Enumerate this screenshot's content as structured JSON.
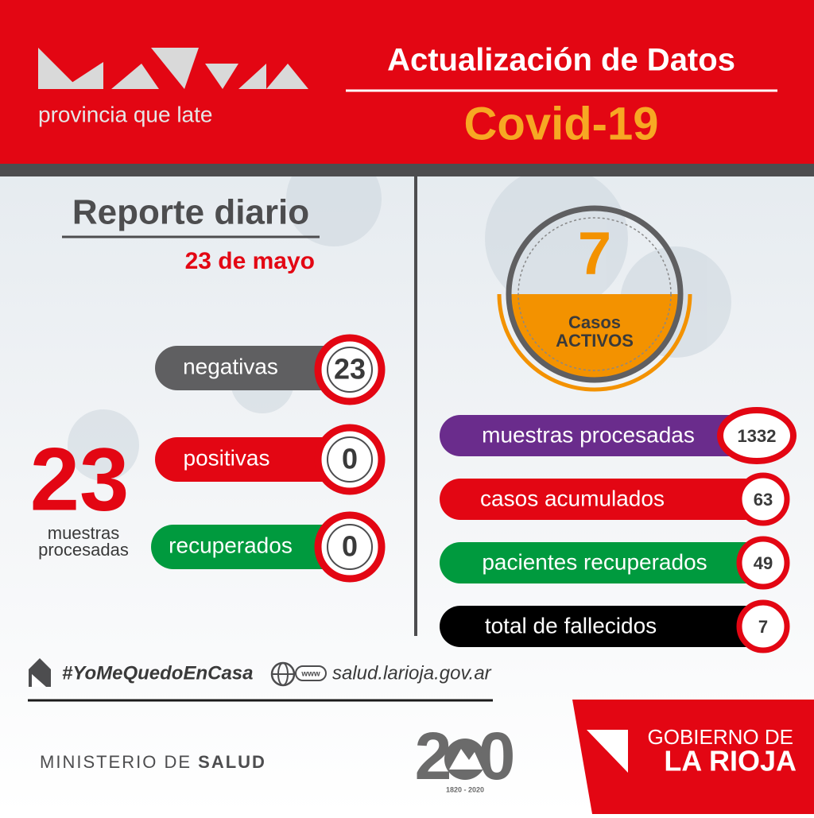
{
  "header": {
    "logo_tagline": "provincia que late",
    "title": "Actualización de Datos",
    "subtitle": "Covid-19"
  },
  "report": {
    "title": "Reporte diario",
    "date": "23 de mayo"
  },
  "daily": {
    "total": 23,
    "total_label": "muestras procesadas",
    "items": [
      {
        "label": "negativas",
        "value": 23
      },
      {
        "label": "positivas",
        "value": 0
      },
      {
        "label": "recuperados",
        "value": 0
      }
    ]
  },
  "active": {
    "value": 7,
    "label_line1": "Casos",
    "label_line2": "ACTIVOS"
  },
  "totals": [
    {
      "label": "muestras procesadas",
      "value": 1332
    },
    {
      "label": "casos acumulados",
      "value": 63
    },
    {
      "label": "pacientes recuperados",
      "value": 49
    },
    {
      "label": "total de fallecidos",
      "value": 7
    }
  ],
  "footer": {
    "hashtag": "#YoMeQuedoEnCasa",
    "web_icon": "www",
    "website": "salud.larioja.gov.ar",
    "ministry_prefix": "MINISTERIO DE",
    "ministry_bold": "SALUD",
    "anniversary": {
      "left": "2",
      "right": "0",
      "years": "1820 - 2020"
    },
    "government_line1": "GOBIERNO DE",
    "government_line2": "LA RIOJA"
  }
}
